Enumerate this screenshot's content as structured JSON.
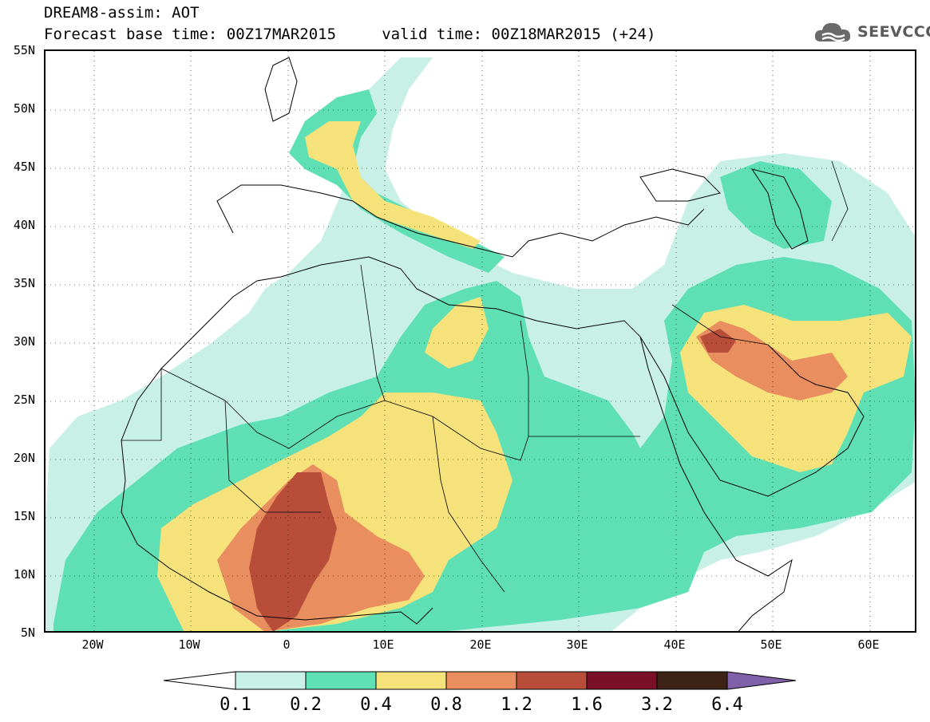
{
  "header": {
    "title": "DREAM8-assim: AOT",
    "subtitle": "Forecast base time: 00Z17MAR2015     valid time: 00Z18MAR2015 (+24)",
    "logo_text": "SEEVCCC",
    "logo_icon": "cloud-icon"
  },
  "map": {
    "projection": "lat-lon",
    "lon_range": [
      -25,
      65
    ],
    "lat_range": [
      5,
      55
    ],
    "lat_labels": [
      "55N",
      "50N",
      "45N",
      "40N",
      "35N",
      "30N",
      "25N",
      "20N",
      "15N",
      "10N",
      "5N"
    ],
    "lon_labels": [
      "20W",
      "10W",
      "0",
      "10E",
      "20E",
      "30E",
      "40E",
      "50E",
      "60E"
    ],
    "gridlines": "dotted"
  },
  "legend": {
    "labels": [
      "0.1",
      "0.2",
      "0.4",
      "0.8",
      "1.2",
      "1.6",
      "3.2",
      "6.4"
    ],
    "colors": [
      "#ffffff",
      "#c8f0e6",
      "#5ee0b4",
      "#f5e27a",
      "#e98e5e",
      "#b84e3a",
      "#7a0f28",
      "#3d2315",
      "#8060a8"
    ]
  }
}
